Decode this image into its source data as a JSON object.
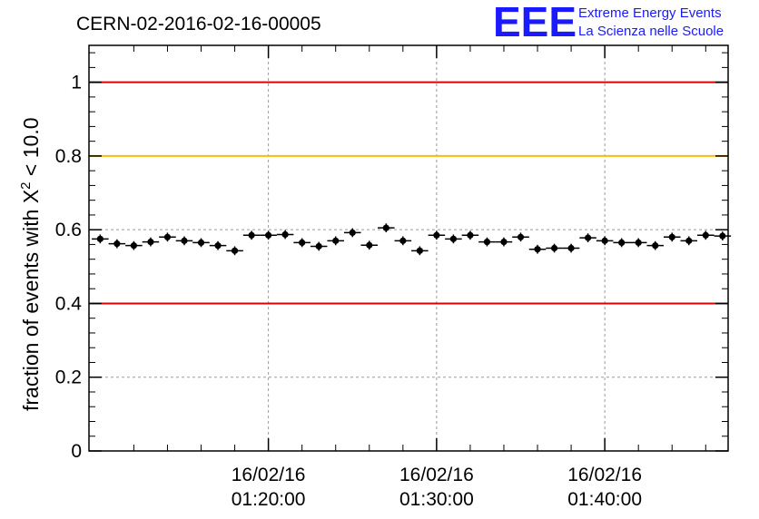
{
  "header": {
    "title": "CERN-02-2016-02-16-00005",
    "logo_text": "EEE",
    "logo_line1": "Extreme Energy Events",
    "logo_line2": "La Scienza nelle Scuole"
  },
  "chart_data": {
    "type": "scatter",
    "title": "CERN-02-2016-02-16-00005",
    "ylabel_main": "fraction of events with X",
    "ylabel_sup": "2",
    "ylabel_tail": " < 10.0",
    "xlabel": "",
    "ylim": [
      0,
      1.1
    ],
    "xlim": [
      "2016-02-16 01:09:20",
      "2016-02-16 01:47:20"
    ],
    "grid": true,
    "x_ticks": [
      {
        "date": "16/02/16",
        "time": "01:20:00",
        "value": "2016-02-16 01:20:00"
      },
      {
        "date": "16/02/16",
        "time": "01:30:00",
        "value": "2016-02-16 01:30:00"
      },
      {
        "date": "16/02/16",
        "time": "01:40:00",
        "value": "2016-02-16 01:40:00"
      }
    ],
    "y_ticks": [
      "0",
      "0.2",
      "0.4",
      "0.6",
      "0.8",
      "1"
    ],
    "reference_lines": [
      {
        "y": 1.0,
        "color": "#dd0000"
      },
      {
        "y": 0.8,
        "color": "#ffbb00"
      },
      {
        "y": 0.4,
        "color": "#dd0000"
      }
    ],
    "point_color": "#000000",
    "x": [
      "01:10:00",
      "01:11:00",
      "01:12:00",
      "01:13:00",
      "01:14:00",
      "01:15:00",
      "01:16:00",
      "01:17:00",
      "01:18:00",
      "01:19:00",
      "01:20:00",
      "01:21:00",
      "01:22:00",
      "01:23:00",
      "01:24:00",
      "01:25:00",
      "01:26:00",
      "01:27:00",
      "01:28:00",
      "01:29:00",
      "01:30:00",
      "01:31:00",
      "01:32:00",
      "01:33:00",
      "01:34:00",
      "01:35:00",
      "01:36:00",
      "01:37:00",
      "01:38:00",
      "01:39:00",
      "01:40:00",
      "01:41:00",
      "01:42:00",
      "01:43:00",
      "01:44:00",
      "01:45:00",
      "01:46:00",
      "01:47:00"
    ],
    "y": [
      0.575,
      0.562,
      0.557,
      0.567,
      0.58,
      0.57,
      0.565,
      0.557,
      0.543,
      0.585,
      0.585,
      0.587,
      0.565,
      0.555,
      0.57,
      0.592,
      0.558,
      0.605,
      0.57,
      0.543,
      0.585,
      0.575,
      0.585,
      0.567,
      0.567,
      0.58,
      0.547,
      0.55,
      0.55,
      0.578,
      0.57,
      0.565,
      0.565,
      0.557,
      0.58,
      0.57,
      0.585,
      0.583
    ],
    "y_err": 0.012
  }
}
